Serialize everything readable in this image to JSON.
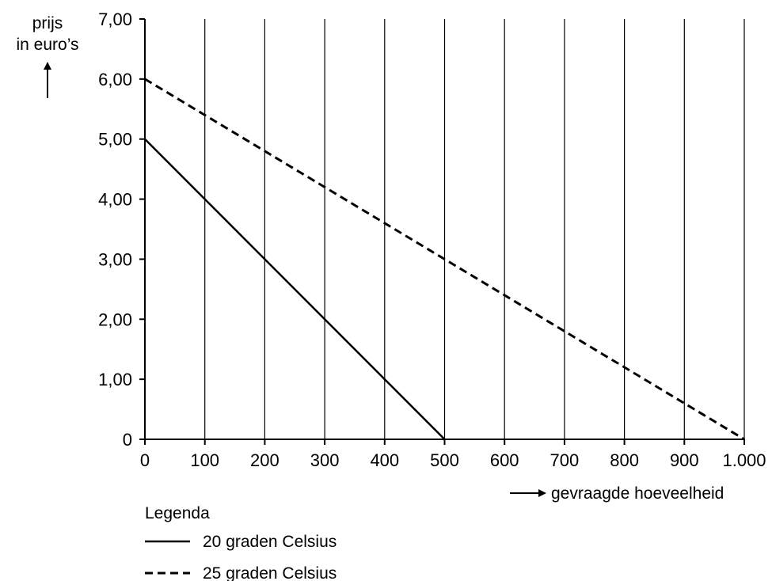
{
  "chart_data": {
    "type": "line",
    "ylabel_line1": "prijs",
    "ylabel_line2": "in euro’s",
    "xlabel": "gevraagde hoeveelheid",
    "xlim": [
      0,
      1000
    ],
    "ylim": [
      0,
      7
    ],
    "x_ticks": [
      0,
      100,
      200,
      300,
      400,
      500,
      600,
      700,
      800,
      900,
      1000
    ],
    "x_tick_labels": [
      "0",
      "100",
      "200",
      "300",
      "400",
      "500",
      "600",
      "700",
      "800",
      "900",
      "1.000"
    ],
    "y_ticks": [
      0,
      1,
      2,
      3,
      4,
      5,
      6,
      7
    ],
    "y_tick_labels": [
      "0",
      "1,00",
      "2,00",
      "3,00",
      "4,00",
      "5,00",
      "6,00",
      "7,00"
    ],
    "vertical_grid": true,
    "horizontal_grid": false,
    "legend_title": "Legenda",
    "legend_placement": "bottom-left",
    "series": [
      {
        "name": "20 graden Celsius",
        "style": "solid",
        "color": "#000000",
        "x": [
          0,
          500
        ],
        "y": [
          5,
          0
        ]
      },
      {
        "name": "25 graden Celsius",
        "style": "dashed",
        "color": "#000000",
        "x": [
          0,
          1000
        ],
        "y": [
          6,
          0
        ]
      }
    ]
  }
}
